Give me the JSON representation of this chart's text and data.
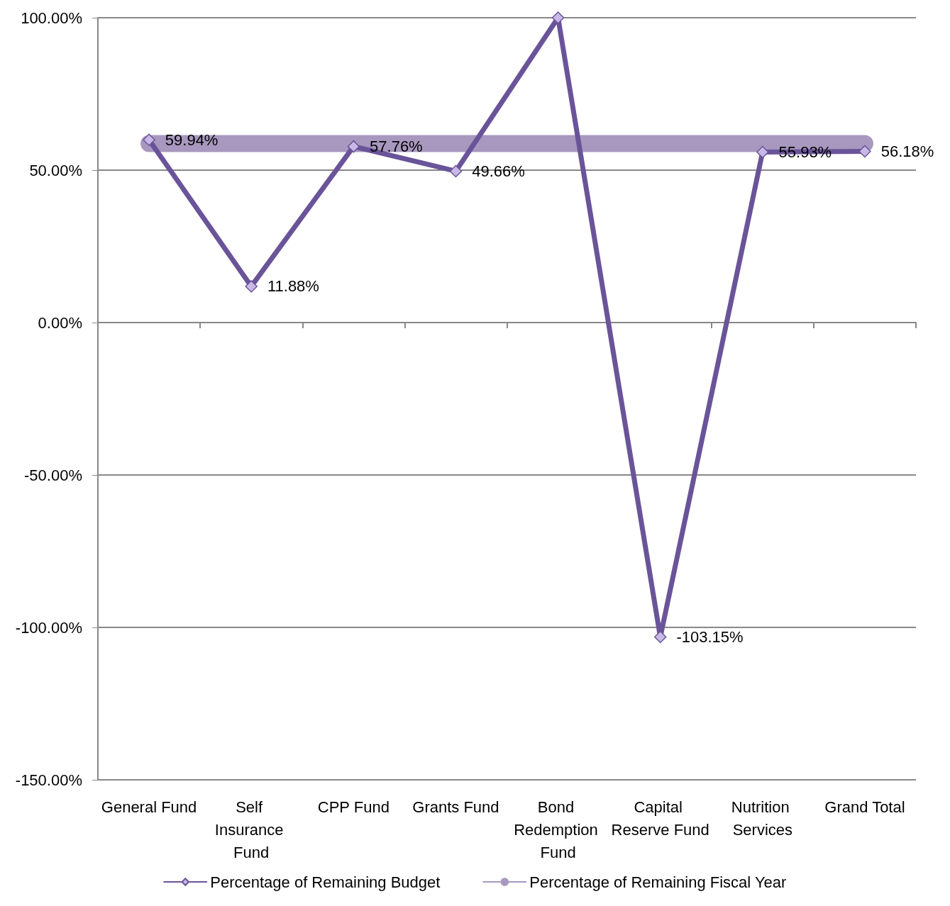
{
  "chart_data": {
    "type": "line",
    "categories": [
      "General Fund",
      "Self Insurance Fund",
      "CPP Fund",
      "Grants Fund",
      "Bond Redemption Fund",
      "Capital Reserve Fund",
      "Nutrition Services",
      "Grand Total"
    ],
    "series": [
      {
        "name": "Percentage of Remaining Budget",
        "color": "#6a5499",
        "marker": "diamond",
        "values": [
          59.94,
          11.88,
          57.76,
          49.66,
          100,
          -103.15,
          55.93,
          56.18
        ],
        "value_labels": [
          "59.94%",
          "11.88%",
          "57.76%",
          "49.66%",
          null,
          "-103.15%",
          "55.93%",
          "56.18%"
        ]
      },
      {
        "name": "Percentage of Remaining Fiscal Year",
        "color": "#a898bf",
        "marker": "none",
        "values": [
          58.7,
          58.7,
          58.7,
          58.7,
          58.7,
          58.7,
          58.7,
          58.7
        ]
      }
    ],
    "ylim": [
      -150,
      100
    ],
    "yticks": [
      {
        "value": -150,
        "label": "-150.00%"
      },
      {
        "value": -100,
        "label": "-100.00%"
      },
      {
        "value": -50,
        "label": "-50.00%"
      },
      {
        "value": 0,
        "label": "0.00%"
      },
      {
        "value": 50,
        "label": "50.00%"
      },
      {
        "value": 100,
        "label": "100.00%"
      }
    ],
    "grid": "y",
    "legend": "bottom"
  }
}
